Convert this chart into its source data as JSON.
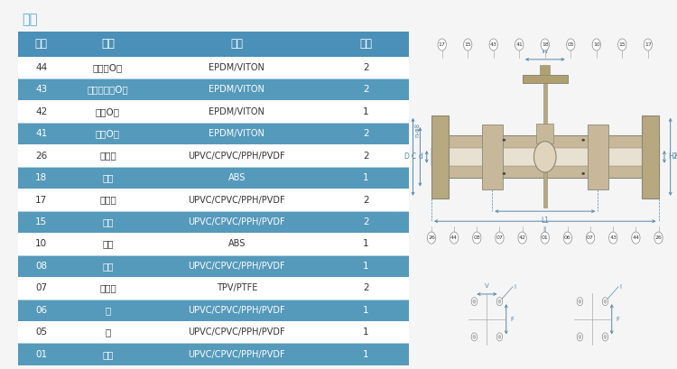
{
  "title": "规格",
  "title_color": "#5aacd4",
  "header_bg": "#4a90b8",
  "header_text_color": "#ffffff",
  "highlight_row_bg": "#5599bb",
  "highlight_row_text": "#ffffff",
  "normal_row_bg": "#ffffff",
  "normal_row_text": "#333333",
  "columns": [
    "序号",
    "名称",
    "材质",
    "数量"
  ],
  "rows": [
    {
      "id": "44",
      "name": "管接头O圈",
      "material": "EPDM/VITON",
      "qty": "2",
      "highlight": false
    },
    {
      "id": "43",
      "name": "止泻环下方O圈",
      "material": "EPDM/VITON",
      "qty": "2",
      "highlight": true
    },
    {
      "id": "42",
      "name": "内衬O圈",
      "material": "EPDM/VITON",
      "qty": "1",
      "highlight": false
    },
    {
      "id": "41",
      "name": "阀杆O圈",
      "material": "EPDM/VITON",
      "qty": "2",
      "highlight": true
    },
    {
      "id": "26",
      "name": "法兰扣",
      "material": "UPVC/CPVC/PPH/PVDF",
      "qty": "2",
      "highlight": false
    },
    {
      "id": "18",
      "name": "喷头",
      "material": "ABS",
      "qty": "1",
      "highlight": true
    },
    {
      "id": "17",
      "name": "法兰体",
      "material": "UPVC/CPVC/PPH/PVDF",
      "qty": "2",
      "highlight": false
    },
    {
      "id": "15",
      "name": "螺帽",
      "material": "UPVC/CPVC/PPH/PVDF",
      "qty": "2",
      "highlight": true
    },
    {
      "id": "10",
      "name": "手柄",
      "material": "ABS",
      "qty": "1",
      "highlight": false
    },
    {
      "id": "08",
      "name": "内衬",
      "material": "UPVC/CPVC/PPH/PVDF",
      "qty": "1",
      "highlight": true
    },
    {
      "id": "07",
      "name": "止泻环",
      "material": "TPV/PTFE",
      "qty": "2",
      "highlight": false
    },
    {
      "id": "06",
      "name": "球",
      "material": "UPVC/CPVC/PPH/PVDF",
      "qty": "1",
      "highlight": true
    },
    {
      "id": "05",
      "name": "杆",
      "material": "UPVC/CPVC/PPH/PVDF",
      "qty": "1",
      "highlight": false
    },
    {
      "id": "01",
      "name": "本体",
      "material": "UPVC/CPVC/PPH/PVDF",
      "qty": "1",
      "highlight": true
    }
  ],
  "background_color": "#f5f5f5",
  "dim_color": "#5588aa",
  "body_color": "#c8b89a",
  "body_edge": "#888877",
  "flange_color": "#b8a880",
  "bore_color": "#e8e0d0",
  "handle_color": "#b0a070",
  "top_labels": [
    "17",
    "15",
    "43",
    "41",
    "18",
    "05",
    "10",
    "15",
    "17"
  ],
  "bot_labels": [
    "26",
    "44",
    "08",
    "07",
    "42",
    "01",
    "06",
    "07",
    "43",
    "44",
    "26"
  ]
}
